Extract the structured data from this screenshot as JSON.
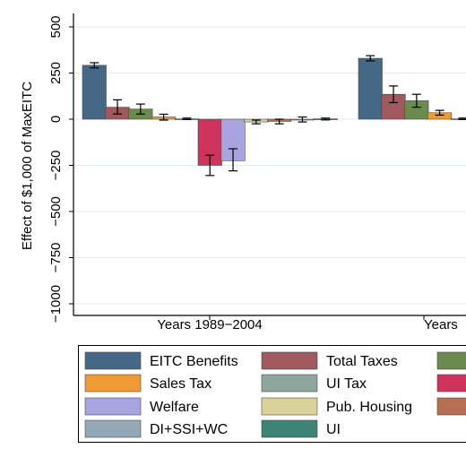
{
  "chart_data": {
    "type": "bar",
    "ylabel": "Effect of $1,000 of MaxEITC",
    "ylim": [
      -1000,
      500
    ],
    "yticks": [
      500,
      250,
      0,
      -250,
      -500,
      -750,
      -1000
    ],
    "ytick_labels": [
      "500",
      "250",
      "0",
      "−250",
      "−500",
      "−750",
      "−1000"
    ],
    "grid": true,
    "legend_position": "bottom",
    "groups": [
      {
        "label": "Years 1989−2004"
      },
      {
        "label": "Years"
      }
    ],
    "series": [
      {
        "name": "EITC Benefits",
        "color": "#466887",
        "values": [
          292,
          330
        ],
        "errors": [
          [
            278,
            306
          ],
          [
            316,
            344
          ]
        ]
      },
      {
        "name": "Total Taxes",
        "color": "#a05a5f",
        "values": [
          65,
          135
        ],
        "errors": [
          [
            28,
            105
          ],
          [
            90,
            180
          ]
        ]
      },
      {
        "name": "",
        "color": "#6b8a4e",
        "values": [
          55,
          100
        ],
        "errors": [
          [
            28,
            82
          ],
          [
            65,
            135
          ]
        ]
      },
      {
        "name": "Sales Tax",
        "color": "#ef9a35",
        "values": [
          12,
          35
        ],
        "errors": [
          [
            -5,
            27
          ],
          [
            22,
            48
          ]
        ]
      },
      {
        "name": "UI Tax",
        "color": "#8fa69f",
        "values": [
          2,
          2
        ],
        "errors": [
          [
            -2,
            6
          ],
          [
            -2,
            6
          ]
        ]
      },
      {
        "name": "",
        "color": "#cf335c",
        "values": [
          -250,
          null
        ],
        "errors": [
          [
            -305,
            -195
          ],
          null
        ]
      },
      {
        "name": "Welfare",
        "color": "#a7a4e0",
        "values": [
          -225,
          null
        ],
        "errors": [
          [
            -280,
            -160
          ],
          null
        ]
      },
      {
        "name": "Pub. Housing",
        "color": "#d9d29b",
        "values": [
          -15,
          null
        ],
        "errors": [
          [
            -25,
            -5
          ],
          null
        ]
      },
      {
        "name": "",
        "color": "#b56f52",
        "values": [
          -12,
          null
        ],
        "errors": [
          [
            -25,
            0
          ],
          null
        ]
      },
      {
        "name": "DI+SSI+WC",
        "color": "#95a8b7",
        "values": [
          -2,
          null
        ],
        "errors": [
          [
            -15,
            12
          ],
          null
        ]
      },
      {
        "name": "UI",
        "color": "#3d8476",
        "values": [
          2,
          null
        ],
        "errors": [
          [
            -4,
            6
          ],
          null
        ]
      }
    ]
  }
}
